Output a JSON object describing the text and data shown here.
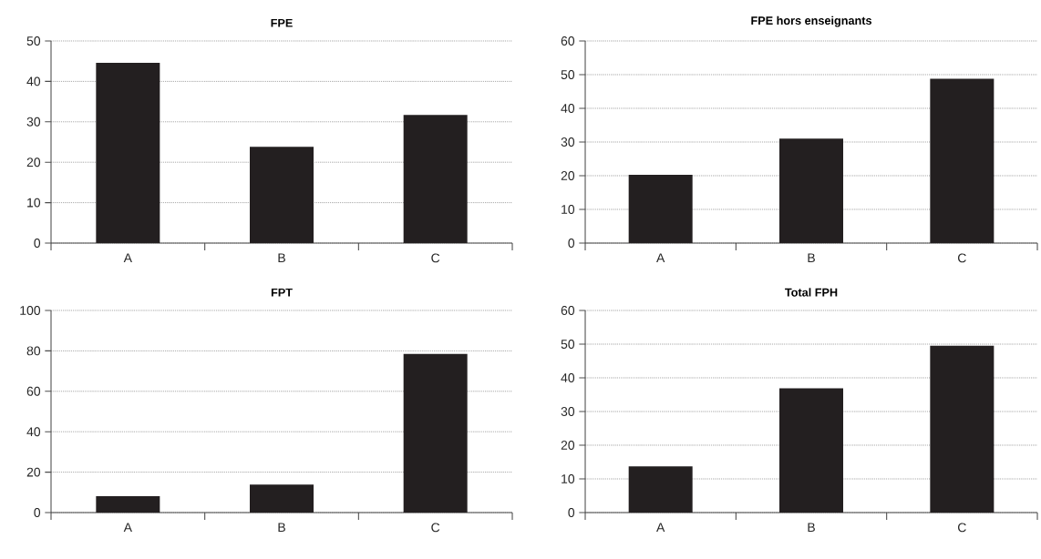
{
  "chart_data": [
    {
      "type": "bar",
      "title": "FPE",
      "categories": [
        "A",
        "B",
        "C"
      ],
      "values": [
        44.6,
        23.8,
        31.7
      ],
      "color": "#231f20",
      "ylim": [
        0,
        50
      ],
      "yticks": [
        0,
        10,
        20,
        30,
        40,
        50
      ],
      "grid": "y"
    },
    {
      "type": "bar",
      "title": "FPE hors enseignants",
      "categories": [
        "A",
        "B",
        "C"
      ],
      "values": [
        20.3,
        31.0,
        48.8
      ],
      "color": "#231f20",
      "ylim": [
        0,
        60
      ],
      "yticks": [
        0,
        10,
        20,
        30,
        40,
        50,
        60
      ],
      "grid": "y"
    },
    {
      "type": "bar",
      "title": "FPT",
      "categories": [
        "A",
        "B",
        "C"
      ],
      "values": [
        8.1,
        13.9,
        78.5
      ],
      "color": "#231f20",
      "ylim": [
        0,
        100
      ],
      "yticks": [
        0,
        20,
        40,
        60,
        80,
        100
      ],
      "grid": "y"
    },
    {
      "type": "bar",
      "title": "Total FPH",
      "categories": [
        "A",
        "B",
        "C"
      ],
      "values": [
        13.7,
        36.9,
        49.5
      ],
      "color": "#231f20",
      "ylim": [
        0,
        60
      ],
      "yticks": [
        0,
        10,
        20,
        30,
        40,
        50,
        60
      ],
      "grid": "y"
    }
  ]
}
